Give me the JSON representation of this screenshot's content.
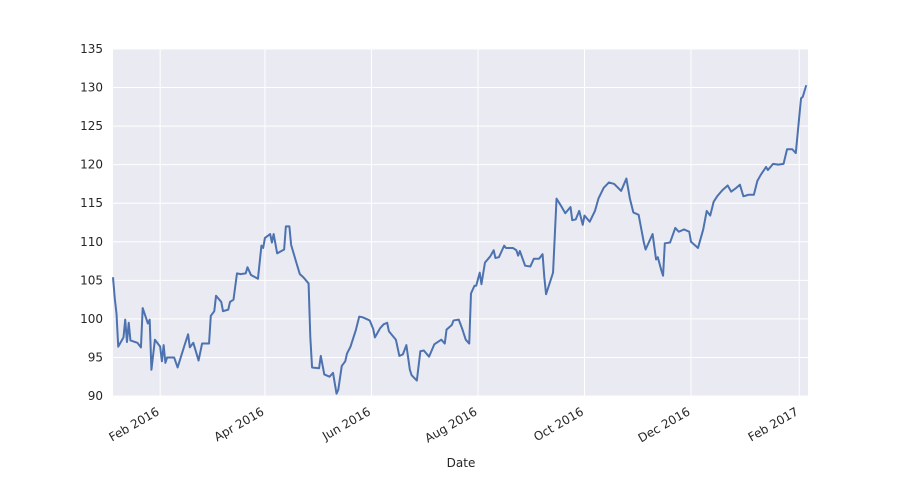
{
  "chart_data": {
    "type": "line",
    "xlabel": "Date",
    "x": [
      "2016-01-05",
      "2016-01-06",
      "2016-01-07",
      "2016-01-08",
      "2016-01-11",
      "2016-01-12",
      "2016-01-13",
      "2016-01-14",
      "2016-01-15",
      "2016-01-19",
      "2016-01-20",
      "2016-01-21",
      "2016-01-22",
      "2016-01-25",
      "2016-01-26",
      "2016-01-27",
      "2016-01-29",
      "2016-02-01",
      "2016-02-02",
      "2016-02-03",
      "2016-02-04",
      "2016-02-05",
      "2016-02-09",
      "2016-02-11",
      "2016-02-15",
      "2016-02-17",
      "2016-02-18",
      "2016-02-20",
      "2016-02-23",
      "2016-02-25",
      "2016-02-29",
      "2016-03-01",
      "2016-03-03",
      "2016-03-04",
      "2016-03-07",
      "2016-03-08",
      "2016-03-11",
      "2016-03-12",
      "2016-03-14",
      "2016-03-16",
      "2016-03-18",
      "2016-03-21",
      "2016-03-22",
      "2016-03-24",
      "2016-03-28",
      "2016-03-30",
      "2016-03-31",
      "2016-04-01",
      "2016-04-04",
      "2016-04-05",
      "2016-04-06",
      "2016-04-08",
      "2016-04-12",
      "2016-04-13",
      "2016-04-15",
      "2016-04-16",
      "2016-04-19",
      "2016-04-21",
      "2016-04-23",
      "2016-04-26",
      "2016-04-27",
      "2016-04-28",
      "2016-05-02",
      "2016-05-03",
      "2016-05-05",
      "2016-05-08",
      "2016-05-10",
      "2016-05-12",
      "2016-05-13",
      "2016-05-15",
      "2016-05-17",
      "2016-05-18",
      "2016-05-20",
      "2016-05-23",
      "2016-05-25",
      "2016-05-27",
      "2016-05-31",
      "2016-06-02",
      "2016-06-03",
      "2016-06-06",
      "2016-06-08",
      "2016-06-10",
      "2016-06-11",
      "2016-06-15",
      "2016-06-17",
      "2016-06-19",
      "2016-06-21",
      "2016-06-23",
      "2016-06-24",
      "2016-06-27",
      "2016-06-29",
      "2016-07-01",
      "2016-07-04",
      "2016-07-07",
      "2016-07-11",
      "2016-07-13",
      "2016-07-14",
      "2016-07-17",
      "2016-07-18",
      "2016-07-21",
      "2016-07-23",
      "2016-07-25",
      "2016-07-27",
      "2016-07-28",
      "2016-07-30",
      "2016-07-31",
      "2016-08-02",
      "2016-08-03",
      "2016-08-05",
      "2016-08-08",
      "2016-08-10",
      "2016-08-11",
      "2016-08-13",
      "2016-08-16",
      "2016-08-17",
      "2016-08-21",
      "2016-08-23",
      "2016-08-24",
      "2016-08-25",
      "2016-08-28",
      "2016-08-31",
      "2016-09-02",
      "2016-09-05",
      "2016-09-07",
      "2016-09-08",
      "2016-09-09",
      "2016-09-11",
      "2016-09-13",
      "2016-09-15",
      "2016-09-18",
      "2016-09-20",
      "2016-09-23",
      "2016-09-24",
      "2016-09-26",
      "2016-09-28",
      "2016-09-30",
      "2016-10-01",
      "2016-10-04",
      "2016-10-07",
      "2016-10-09",
      "2016-10-12",
      "2016-10-15",
      "2016-10-18",
      "2016-10-22",
      "2016-10-25",
      "2016-10-27",
      "2016-10-29",
      "2016-11-01",
      "2016-11-04",
      "2016-11-05",
      "2016-11-09",
      "2016-11-11",
      "2016-11-12",
      "2016-11-14",
      "2016-11-15",
      "2016-11-16",
      "2016-11-19",
      "2016-11-22",
      "2016-11-24",
      "2016-11-27",
      "2016-11-30",
      "2016-12-01",
      "2016-12-05",
      "2016-12-08",
      "2016-12-10",
      "2016-12-12",
      "2016-12-14",
      "2016-12-16",
      "2016-12-19",
      "2016-12-22",
      "2016-12-24",
      "2016-12-27",
      "2016-12-29",
      "2016-12-31",
      "2017-01-03",
      "2017-01-06",
      "2017-01-08",
      "2017-01-10",
      "2017-01-13",
      "2017-01-14",
      "2017-01-17",
      "2017-01-20",
      "2017-01-23",
      "2017-01-25",
      "2017-01-28",
      "2017-01-30",
      "2017-02-02",
      "2017-02-03",
      "2017-02-05"
    ],
    "series": [
      {
        "color": "#4c72b0",
        "values": [
          105.4,
          102.7,
          100.7,
          96.4,
          97.6,
          99.9,
          97,
          99.5,
          97.2,
          96.9,
          96.6,
          96.3,
          101.4,
          99.4,
          99.9,
          93.4,
          97.3,
          96.4,
          94.5,
          96.6,
          94.3,
          95,
          95,
          93.7,
          96.6,
          98,
          96.3,
          96.9,
          94.6,
          96.8,
          96.8,
          100.4,
          101,
          103,
          102.2,
          101,
          101.2,
          102.2,
          102.5,
          105.9,
          105.8,
          105.9,
          106.7,
          105.7,
          105.2,
          109.5,
          109.2,
          110.5,
          111,
          109.9,
          111,
          108.5,
          109,
          112,
          112,
          109.6,
          107.3,
          105.8,
          105.4,
          104.6,
          97.6,
          93.7,
          93.6,
          95.2,
          92.8,
          92.5,
          93,
          90.3,
          90.8,
          93.9,
          94.5,
          95.5,
          96.4,
          98.5,
          100.3,
          100.2,
          99.8,
          98.7,
          97.6,
          98.8,
          99.3,
          99.5,
          98.4,
          97.3,
          95.2,
          95.4,
          96.6,
          93.4,
          92.7,
          92,
          95.8,
          95.9,
          95.1,
          96.7,
          97.3,
          96.8,
          98.6,
          99.2,
          99.8,
          99.9,
          98.7,
          97.3,
          96.8,
          103.3,
          104.3,
          104.3,
          106,
          104.5,
          107.3,
          108.1,
          108.9,
          107.9,
          108,
          109.5,
          109.2,
          109.2,
          108.9,
          108.2,
          108.8,
          106.9,
          106.8,
          107.8,
          107.8,
          108.4,
          105.4,
          103.2,
          104.6,
          106,
          115.6,
          114.5,
          113.7,
          114.5,
          112.8,
          112.9,
          114,
          112.2,
          113.4,
          112.6,
          114,
          115.6,
          117,
          117.7,
          117.5,
          116.6,
          118.2,
          115.6,
          113.8,
          113.5,
          109.9,
          109,
          111,
          107.7,
          108,
          106.3,
          105.6,
          109.8,
          109.9,
          111.8,
          111.3,
          111.6,
          111.3,
          110,
          109.2,
          111.6,
          114,
          113.4,
          115.2,
          115.9,
          116.7,
          117.3,
          116.5,
          117,
          117.4,
          115.9,
          116.1,
          116.1,
          117.9,
          118.7,
          119.7,
          119.3,
          120.1,
          120,
          120.1,
          122,
          122,
          121.5,
          128.6,
          128.8,
          130.3
        ]
      }
    ],
    "xlim": [
      "2016-01-05",
      "2017-02-06"
    ],
    "xticks": [
      {
        "value": "2016-02-01",
        "label": "Feb 2016"
      },
      {
        "value": "2016-04-01",
        "label": "Apr 2016"
      },
      {
        "value": "2016-06-01",
        "label": "Jun 2016"
      },
      {
        "value": "2016-08-01",
        "label": "Aug 2016"
      },
      {
        "value": "2016-10-01",
        "label": "Oct 2016"
      },
      {
        "value": "2016-12-01",
        "label": "Dec 2016"
      },
      {
        "value": "2017-02-01",
        "label": "Feb 2017"
      }
    ],
    "ylim": [
      90,
      135
    ],
    "yticks": [
      90,
      95,
      100,
      105,
      110,
      115,
      120,
      125,
      130,
      135
    ],
    "grid": true
  }
}
